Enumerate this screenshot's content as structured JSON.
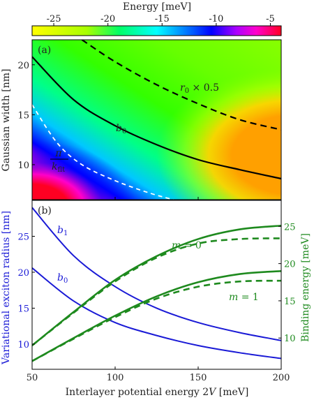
{
  "colorbar": {
    "title": "Energy [meV]",
    "ticks": [
      "-25",
      "-20",
      "-15",
      "-10",
      "-5"
    ],
    "tick_values": [
      -25,
      -20,
      -15,
      -10,
      -5
    ],
    "range": [
      -27,
      -4
    ]
  },
  "xaxis": {
    "label": "Interlayer potential energy 2V [meV]",
    "ticks": [
      "50",
      "100",
      "150",
      "200"
    ],
    "tick_values": [
      50,
      100,
      150,
      200
    ],
    "range": [
      50,
      200
    ]
  },
  "panel_a": {
    "tag": "(a)",
    "ylabel": "Gaussian width [nm]",
    "yticks": [
      "10",
      "15",
      "20"
    ],
    "ytick_values": [
      10,
      15,
      20
    ],
    "ylim": [
      6.5,
      22.5
    ],
    "labels": {
      "b0": "b0",
      "r0": "r0 × 0.5",
      "pi_k": "π/kflt"
    }
  },
  "panel_b": {
    "tag": "(b)",
    "ylabel_left": "Variational exciton radius [nm]",
    "ylabel_right": "Binding energy [meV]",
    "yticks_left": [
      "10",
      "15",
      "20",
      "25"
    ],
    "ytick_values_left": [
      10,
      15,
      20,
      25
    ],
    "ylim_left": [
      6.5,
      30
    ],
    "yticks_right": [
      "10",
      "15",
      "20",
      "25"
    ],
    "ytick_values_right": [
      10,
      15,
      20,
      25
    ],
    "ylim_right": [
      5.8,
      28.5
    ],
    "labels": {
      "b1": "b1",
      "b0": "b0",
      "m0": "m = 0",
      "m1": "m = 1"
    }
  },
  "colors": {
    "blue": "#1a1ad6",
    "green": "#1e8a1e",
    "black": "#000000"
  },
  "chart_data": [
    {
      "type": "heatmap",
      "panel": "a",
      "xlabel": "Interlayer potential energy 2V [meV]",
      "ylabel": "Gaussian width [nm]",
      "colorbar_label": "Energy [meV]",
      "colorbar_range": [
        -27,
        -4
      ],
      "series": [
        {
          "name": "b0",
          "style": "solid black",
          "x": [
            50,
            75,
            100,
            125,
            150,
            175,
            200
          ],
          "y": [
            20.8,
            16.5,
            13.9,
            12.0,
            10.5,
            9.5,
            8.6
          ]
        },
        {
          "name": "r0 × 0.5",
          "style": "dashed black",
          "x": [
            80,
            100,
            125,
            150,
            175,
            200
          ],
          "y": [
            22.5,
            20.3,
            18.0,
            16.1,
            14.5,
            13.5
          ]
        },
        {
          "name": "π/kflt",
          "style": "dashed white",
          "x": [
            50,
            65,
            80,
            100,
            120,
            135
          ],
          "y": [
            16.0,
            12.2,
            10.0,
            8.4,
            7.2,
            6.5
          ]
        }
      ]
    },
    {
      "type": "line",
      "panel": "b",
      "xlabel": "Interlayer potential energy 2V [meV]",
      "ylabel": "Variational exciton radius [nm]",
      "y2label": "Binding energy [meV]",
      "series": [
        {
          "name": "b1",
          "axis": "left",
          "style": "solid blue",
          "x": [
            50,
            75,
            100,
            125,
            150,
            175,
            200
          ],
          "y": [
            29.0,
            22.3,
            18.0,
            15.0,
            13.0,
            11.6,
            10.5
          ]
        },
        {
          "name": "b0",
          "axis": "left",
          "style": "solid blue",
          "x": [
            50,
            75,
            100,
            125,
            150,
            175,
            200
          ],
          "y": [
            20.6,
            16.0,
            13.0,
            11.2,
            9.8,
            8.8,
            8.0
          ]
        },
        {
          "name": "m = 0",
          "axis": "right",
          "style": "solid green",
          "x": [
            50,
            75,
            100,
            125,
            150,
            175,
            200
          ],
          "y": [
            9.0,
            13.5,
            17.8,
            21.0,
            23.3,
            24.6,
            25.1
          ]
        },
        {
          "name": "m = 0",
          "axis": "right",
          "style": "dashed green",
          "x": [
            50,
            75,
            100,
            125,
            150,
            175,
            200
          ],
          "y": [
            9.0,
            13.4,
            17.6,
            20.8,
            22.7,
            23.3,
            23.4
          ]
        },
        {
          "name": "m = 1",
          "axis": "right",
          "style": "solid green",
          "x": [
            50,
            75,
            100,
            125,
            150,
            175,
            200
          ],
          "y": [
            6.9,
            10.0,
            13.0,
            15.6,
            17.5,
            18.6,
            19.0
          ]
        },
        {
          "name": "m = 1",
          "axis": "right",
          "style": "dashed green",
          "x": [
            50,
            75,
            100,
            125,
            150,
            175,
            200
          ],
          "y": [
            6.9,
            9.9,
            12.8,
            15.3,
            16.9,
            17.6,
            17.7
          ]
        }
      ]
    }
  ]
}
